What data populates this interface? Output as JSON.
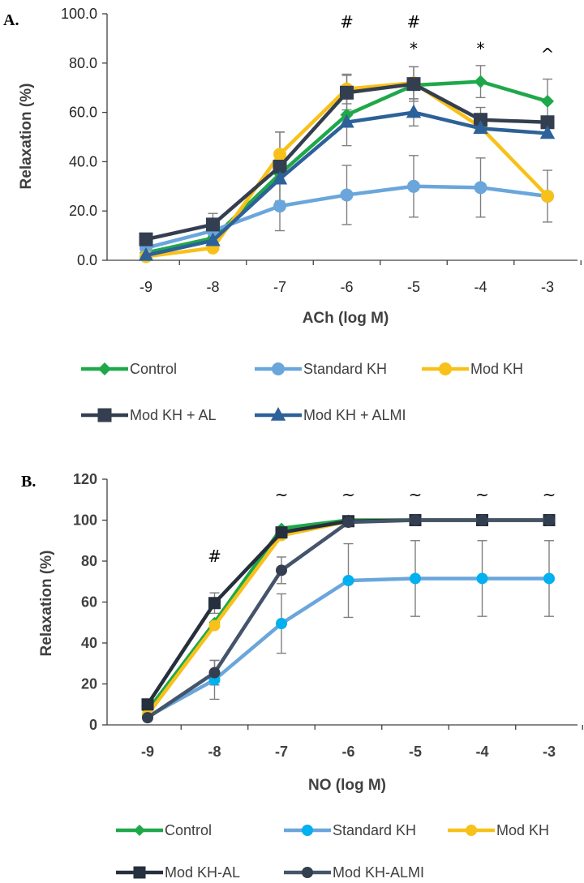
{
  "chart_data": [
    {
      "panel_label": "A.",
      "type": "line",
      "xlabel": "ACh (log M)",
      "ylabel": "Relaxation (%)",
      "categories": [
        "-9",
        "-8",
        "-7",
        "-6",
        "-5",
        "-4",
        "-3"
      ],
      "ylim": [
        0,
        100
      ],
      "ytick_labels": [
        "0.0",
        "20.0",
        "40.0",
        "60.0",
        "80.0",
        "100.0"
      ],
      "series": [
        {
          "name": "Control",
          "color": "#1fa84a",
          "marker": "diamond",
          "values": [
            3,
            9,
            35,
            59,
            71,
            72.5,
            64.5
          ],
          "errors": [
            0,
            0,
            0,
            0,
            0,
            6.5,
            9
          ]
        },
        {
          "name": "Standard KH",
          "color": "#6aa6db",
          "marker": "circle",
          "values": [
            5,
            12,
            22,
            26.5,
            30,
            29.5,
            26
          ],
          "errors": [
            0,
            0,
            10,
            12,
            12.5,
            12,
            10.5
          ]
        },
        {
          "name": "Mod KH",
          "color": "#f8c11a",
          "marker": "circle",
          "values": [
            1.5,
            5,
            43,
            69.5,
            72,
            54,
            26
          ],
          "errors": [
            0,
            0,
            9,
            6,
            6.5,
            0,
            0
          ]
        },
        {
          "name": "Mod KH + AL",
          "color": "#333f50",
          "marker": "square",
          "values": [
            8.5,
            14.5,
            38,
            68,
            71.5,
            57,
            56
          ],
          "errors": [
            0,
            4.5,
            14,
            7,
            7,
            5,
            0
          ]
        },
        {
          "name": "Mod KH + ALMI",
          "color": "#2d6199",
          "marker": "triangle",
          "values": [
            2,
            8,
            33,
            56,
            60,
            53.5,
            51.5
          ],
          "errors": [
            0,
            0,
            0,
            9.5,
            5.5,
            0,
            0
          ]
        }
      ],
      "annotations": [
        {
          "x": "-6",
          "text": "#"
        },
        {
          "x": "-5",
          "text": "#"
        },
        {
          "x": "-5",
          "text": "*"
        },
        {
          "x": "-4",
          "text": "*"
        },
        {
          "x": "-3",
          "text": "^"
        }
      ]
    },
    {
      "panel_label": "B.",
      "type": "line",
      "xlabel": "NO (log M)",
      "ylabel": "Relaxation (%)",
      "categories": [
        "-9",
        "-8",
        "-7",
        "-6",
        "-5",
        "-4",
        "-3"
      ],
      "ylim": [
        0,
        120
      ],
      "ytick_labels": [
        "0",
        "20",
        "40",
        "60",
        "80",
        "100",
        "120"
      ],
      "series": [
        {
          "name": "Control",
          "color": "#1fa84a",
          "marker": "diamond",
          "values": [
            7,
            50,
            96,
            100,
            100,
            100,
            100
          ],
          "errors": [
            0,
            0,
            0,
            0,
            0,
            0,
            0
          ]
        },
        {
          "name": "Standard KH",
          "color": "#00b0f0",
          "line_color": "#6aa6db",
          "marker": "circle",
          "values": [
            4,
            22,
            49.5,
            70.5,
            71.5,
            71.5,
            71.5
          ],
          "errors": [
            0,
            9.5,
            14.5,
            18,
            18.5,
            18.5,
            18.5
          ]
        },
        {
          "name": "Mod KH",
          "color": "#f8c11a",
          "marker": "circle",
          "values": [
            5,
            48.5,
            92.5,
            99.5,
            100,
            100,
            100
          ],
          "errors": [
            0,
            0,
            0,
            0,
            0,
            0,
            0
          ]
        },
        {
          "name": "Mod KH-AL",
          "color": "#262f3d",
          "line_color": "#262f3d",
          "marker": "square",
          "values": [
            10,
            59.5,
            94,
            99.5,
            100,
            100,
            100
          ],
          "errors": [
            0,
            5,
            0,
            0,
            0,
            0,
            0
          ]
        },
        {
          "name": "Mod KH-ALMI",
          "color": "#333f50",
          "line_color": "#44546a",
          "marker": "circle",
          "values": [
            3.5,
            25.5,
            75.5,
            99,
            100,
            100,
            100
          ],
          "errors": [
            0,
            6,
            6.5,
            0,
            0,
            0,
            0
          ]
        }
      ],
      "annotations": [
        {
          "x": "-8",
          "text": "#"
        },
        {
          "x": "-7",
          "text": "~"
        },
        {
          "x": "-6",
          "text": "~"
        },
        {
          "x": "-5",
          "text": "~"
        },
        {
          "x": "-4",
          "text": "~"
        },
        {
          "x": "-3",
          "text": "~"
        }
      ]
    }
  ]
}
